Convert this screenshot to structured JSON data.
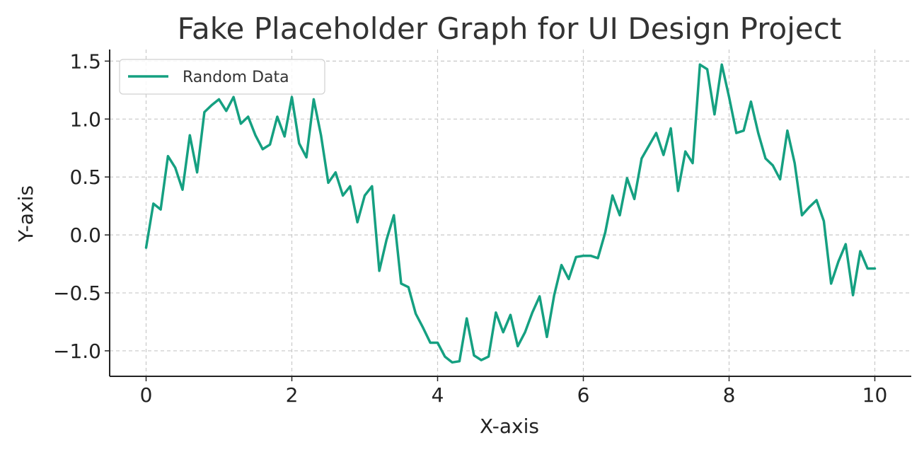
{
  "colors": {
    "background": "#ffffff",
    "series": "#15a081",
    "grid": "#c8c8c8",
    "axis": "#222222",
    "text": "#333333"
  },
  "chart_data": {
    "type": "line",
    "title": "Fake Placeholder Graph for UI Design Project",
    "xlabel": "X-axis",
    "ylabel": "Y-axis",
    "xlim": [
      -0.5,
      10.5
    ],
    "ylim": [
      -1.22,
      1.6
    ],
    "xticks": [
      0,
      2,
      4,
      6,
      8,
      10
    ],
    "yticks": [
      -1.0,
      -0.5,
      0.0,
      0.5,
      1.0,
      1.5
    ],
    "xtick_labels": [
      "0",
      "2",
      "4",
      "6",
      "8",
      "10"
    ],
    "ytick_labels": [
      "−1.0",
      "−0.5",
      "0.0",
      "0.5",
      "1.0",
      "1.5"
    ],
    "grid": true,
    "grid_style": "dashed",
    "legend_position": "top-left",
    "series": [
      {
        "name": "Random Data",
        "color": "#15a081",
        "x": [
          0,
          0.1,
          0.2,
          0.3,
          0.4,
          0.5,
          0.6,
          0.7,
          0.8,
          0.9,
          1.0,
          1.1,
          1.2,
          1.3,
          1.4,
          1.5,
          1.6,
          1.7,
          1.8,
          1.9,
          2.0,
          2.1,
          2.2,
          2.3,
          2.4,
          2.5,
          2.6,
          2.7,
          2.8,
          2.9,
          3.0,
          3.1,
          3.2,
          3.3,
          3.4,
          3.5,
          3.6,
          3.7,
          3.8,
          3.9,
          4.0,
          4.1,
          4.2,
          4.3,
          4.4,
          4.5,
          4.6,
          4.7,
          4.8,
          4.9,
          5.0,
          5.1,
          5.2,
          5.3,
          5.4,
          5.5,
          5.6,
          5.7,
          5.8,
          5.9,
          6.0,
          6.1,
          6.2,
          6.3,
          6.4,
          6.5,
          6.6,
          6.7,
          6.8,
          6.9,
          7.0,
          7.1,
          7.2,
          7.3,
          7.4,
          7.5,
          7.6,
          7.7,
          7.8,
          7.9,
          8.0,
          8.1,
          8.2,
          8.3,
          8.4,
          8.5,
          8.6,
          8.7,
          8.8,
          8.9,
          9.0,
          9.1,
          9.2,
          9.3,
          9.4,
          9.5,
          9.6,
          9.7,
          9.8,
          9.9,
          10.0
        ],
        "y": [
          -0.11,
          0.27,
          0.22,
          0.68,
          0.58,
          0.39,
          0.86,
          0.54,
          1.06,
          1.12,
          1.17,
          1.07,
          1.19,
          0.96,
          1.02,
          0.86,
          0.74,
          0.78,
          1.02,
          0.85,
          1.19,
          0.79,
          0.67,
          1.17,
          0.86,
          0.45,
          0.54,
          0.34,
          0.42,
          0.11,
          0.34,
          0.42,
          -0.31,
          -0.04,
          0.17,
          -0.42,
          -0.45,
          -0.68,
          -0.8,
          -0.93,
          -0.93,
          -1.05,
          -1.1,
          -1.09,
          -0.72,
          -1.04,
          -1.08,
          -1.05,
          -0.67,
          -0.84,
          -0.69,
          -0.96,
          -0.84,
          -0.67,
          -0.53,
          -0.88,
          -0.52,
          -0.26,
          -0.38,
          -0.19,
          -0.18,
          -0.18,
          -0.2,
          0.02,
          0.34,
          0.17,
          0.49,
          0.31,
          0.66,
          0.77,
          0.88,
          0.69,
          0.92,
          0.38,
          0.72,
          0.62,
          1.47,
          1.43,
          1.04,
          1.47,
          1.19,
          0.88,
          0.9,
          1.15,
          0.88,
          0.66,
          0.6,
          0.48,
          0.9,
          0.62,
          0.17,
          0.24,
          0.3,
          0.12,
          -0.42,
          -0.23,
          -0.08,
          -0.52,
          -0.14,
          -0.29,
          -0.29
        ]
      }
    ]
  }
}
